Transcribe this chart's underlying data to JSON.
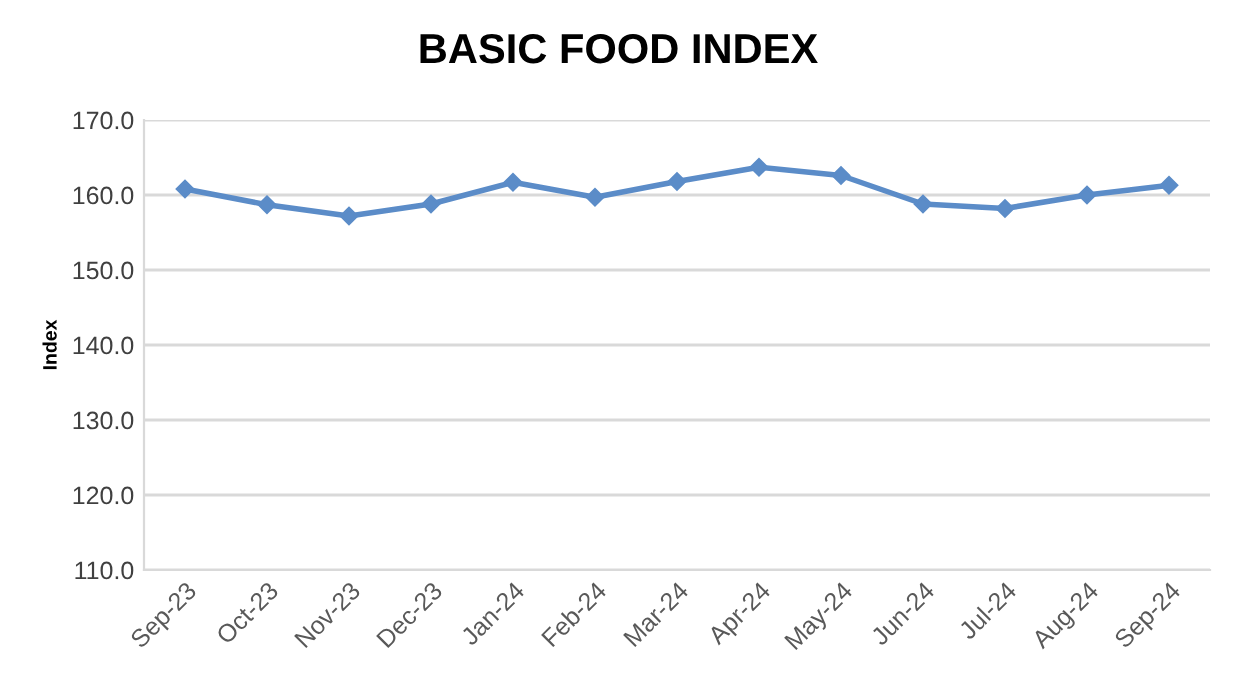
{
  "chart_data": {
    "type": "line",
    "title": "BASIC FOOD INDEX",
    "ylabel": "Index",
    "categories": [
      "Sep-23",
      "Oct-23",
      "Nov-23",
      "Dec-23",
      "Jan-24",
      "Feb-24",
      "Mar-24",
      "Apr-24",
      "May-24",
      "Jun-24",
      "Jul-24",
      "Aug-24",
      "Sep-24"
    ],
    "series": [
      {
        "color": "#5b8cc8",
        "values": [
          160.8,
          158.7,
          157.2,
          158.8,
          161.7,
          159.7,
          161.8,
          163.7,
          162.6,
          158.8,
          158.2,
          160.0,
          161.3
        ]
      }
    ],
    "ylim": [
      110,
      170
    ],
    "yticks": [
      {
        "value": 110,
        "label": "110.0"
      },
      {
        "value": 120,
        "label": "120.0"
      },
      {
        "value": 130,
        "label": "130.0"
      },
      {
        "value": 140,
        "label": "140.0"
      },
      {
        "value": 150,
        "label": "150.0"
      },
      {
        "value": 160,
        "label": "160.0"
      },
      {
        "value": 170,
        "label": "170.0"
      }
    ],
    "grid": "y",
    "marker": "diamond",
    "line_style": "solid"
  }
}
